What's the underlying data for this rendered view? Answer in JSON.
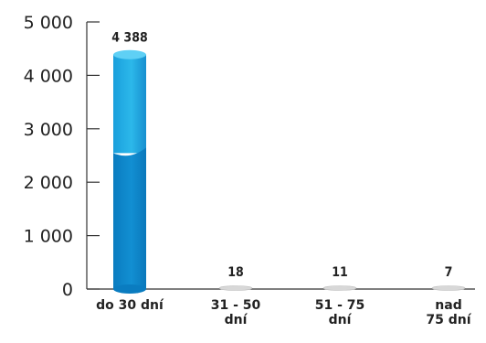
{
  "chart_data": {
    "type": "bar",
    "categories": [
      [
        "do 30 dní"
      ],
      [
        "31 - 50",
        "dní"
      ],
      [
        "51 - 75",
        "dní"
      ],
      [
        "nad",
        "75 dní"
      ]
    ],
    "values": [
      4388,
      18,
      11,
      7
    ],
    "value_labels": [
      "4 388",
      "18",
      "11",
      "7"
    ],
    "ylim": [
      0,
      5000
    ],
    "yticks": [
      0,
      1000,
      2000,
      3000,
      4000,
      5000
    ],
    "ytick_labels": [
      "0",
      "1 000",
      "2 000",
      "3 000",
      "4 000",
      "5 000"
    ],
    "grid": false,
    "colors": {
      "bar_top": "#2ab4e6",
      "bar_bottom": "#0b86c8",
      "bar_cap": "#5fd0f5",
      "small_bar": "#d8d8d8",
      "axis": "#333333"
    }
  }
}
